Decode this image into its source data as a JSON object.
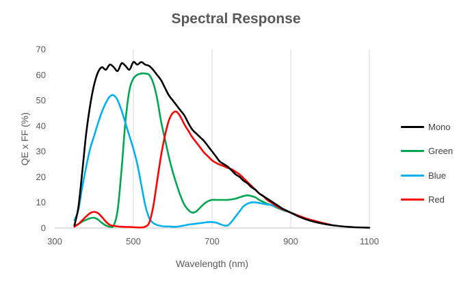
{
  "chart_data": {
    "type": "line",
    "title": "Spectral Response",
    "xlabel": "Wavelength (nm)",
    "ylabel": "QE x FF (%)",
    "xlim": [
      300,
      1100
    ],
    "ylim": [
      0,
      70
    ],
    "xticks": [
      300,
      500,
      700,
      900,
      1100
    ],
    "yticks": [
      0,
      10,
      20,
      30,
      40,
      50,
      60,
      70
    ],
    "grid": "vertical",
    "legend_position": "right",
    "series": [
      {
        "name": "Mono",
        "color": "#000000",
        "points": [
          [
            350,
            1
          ],
          [
            360,
            8
          ],
          [
            370,
            22
          ],
          [
            380,
            37
          ],
          [
            390,
            48
          ],
          [
            400,
            56
          ],
          [
            410,
            61
          ],
          [
            420,
            63
          ],
          [
            430,
            62
          ],
          [
            440,
            64
          ],
          [
            450,
            63
          ],
          [
            460,
            61.5
          ],
          [
            470,
            64.5
          ],
          [
            480,
            63.5
          ],
          [
            490,
            62
          ],
          [
            500,
            65
          ],
          [
            510,
            64
          ],
          [
            520,
            65
          ],
          [
            530,
            64
          ],
          [
            540,
            63.5
          ],
          [
            550,
            62
          ],
          [
            560,
            60
          ],
          [
            570,
            58
          ],
          [
            580,
            55
          ],
          [
            590,
            52
          ],
          [
            600,
            50
          ],
          [
            610,
            48
          ],
          [
            620,
            46
          ],
          [
            630,
            44
          ],
          [
            640,
            41
          ],
          [
            650,
            38.5
          ],
          [
            660,
            37
          ],
          [
            670,
            35.5
          ],
          [
            680,
            34
          ],
          [
            690,
            32
          ],
          [
            700,
            30
          ],
          [
            710,
            28
          ],
          [
            720,
            26
          ],
          [
            730,
            25
          ],
          [
            740,
            24
          ],
          [
            750,
            22.5
          ],
          [
            760,
            21
          ],
          [
            770,
            20
          ],
          [
            780,
            18.5
          ],
          [
            790,
            17.5
          ],
          [
            800,
            16
          ],
          [
            810,
            15
          ],
          [
            820,
            13.5
          ],
          [
            830,
            12.5
          ],
          [
            840,
            11.5
          ],
          [
            850,
            10.5
          ],
          [
            860,
            9.5
          ],
          [
            870,
            8.5
          ],
          [
            880,
            7.5
          ],
          [
            900,
            6
          ],
          [
            920,
            4.5
          ],
          [
            940,
            3.3
          ],
          [
            960,
            2.4
          ],
          [
            980,
            1.7
          ],
          [
            1000,
            1.2
          ],
          [
            1020,
            0.8
          ],
          [
            1040,
            0.5
          ],
          [
            1060,
            0.3
          ],
          [
            1080,
            0.2
          ],
          [
            1100,
            0.1
          ]
        ]
      },
      {
        "name": "Green",
        "color": "#00a650",
        "points": [
          [
            350,
            1
          ],
          [
            360,
            1.5
          ],
          [
            370,
            2.5
          ],
          [
            380,
            3.2
          ],
          [
            390,
            3.8
          ],
          [
            400,
            4
          ],
          [
            410,
            3.3
          ],
          [
            420,
            2
          ],
          [
            430,
            1
          ],
          [
            440,
            0.5
          ],
          [
            450,
            1
          ],
          [
            460,
            7
          ],
          [
            470,
            23
          ],
          [
            480,
            42
          ],
          [
            490,
            54
          ],
          [
            500,
            58.5
          ],
          [
            510,
            60
          ],
          [
            520,
            60.5
          ],
          [
            530,
            60.5
          ],
          [
            540,
            60
          ],
          [
            550,
            57
          ],
          [
            560,
            51
          ],
          [
            570,
            42
          ],
          [
            580,
            35
          ],
          [
            590,
            28
          ],
          [
            600,
            22
          ],
          [
            610,
            17
          ],
          [
            620,
            12.5
          ],
          [
            630,
            9
          ],
          [
            640,
            7
          ],
          [
            650,
            6
          ],
          [
            660,
            6.5
          ],
          [
            670,
            8
          ],
          [
            680,
            9.5
          ],
          [
            690,
            10.5
          ],
          [
            700,
            11
          ],
          [
            710,
            11
          ],
          [
            720,
            11
          ],
          [
            730,
            11
          ],
          [
            740,
            11
          ],
          [
            750,
            11.2
          ],
          [
            760,
            11.5
          ],
          [
            770,
            12
          ],
          [
            780,
            12.5
          ],
          [
            790,
            12.8
          ],
          [
            800,
            12.5
          ],
          [
            810,
            12
          ],
          [
            820,
            11
          ],
          [
            830,
            10.2
          ],
          [
            840,
            9.5
          ],
          [
            850,
            9
          ],
          [
            860,
            8.3
          ],
          [
            880,
            7
          ],
          [
            900,
            6
          ],
          [
            920,
            4.7
          ],
          [
            940,
            3.6
          ],
          [
            960,
            2.8
          ],
          [
            980,
            2
          ],
          [
            1000,
            1.3
          ]
        ]
      },
      {
        "name": "Blue",
        "color": "#00b0f0",
        "points": [
          [
            350,
            3
          ],
          [
            360,
            7
          ],
          [
            370,
            16
          ],
          [
            380,
            24
          ],
          [
            390,
            31
          ],
          [
            400,
            36
          ],
          [
            410,
            41
          ],
          [
            420,
            45.5
          ],
          [
            430,
            49
          ],
          [
            440,
            51.5
          ],
          [
            450,
            52
          ],
          [
            460,
            50
          ],
          [
            470,
            46
          ],
          [
            480,
            41
          ],
          [
            490,
            36
          ],
          [
            500,
            31
          ],
          [
            510,
            25
          ],
          [
            520,
            17
          ],
          [
            530,
            9
          ],
          [
            540,
            4
          ],
          [
            550,
            2
          ],
          [
            560,
            1.2
          ],
          [
            570,
            0.8
          ],
          [
            580,
            0.6
          ],
          [
            590,
            0.6
          ],
          [
            600,
            0.5
          ],
          [
            610,
            0.5
          ],
          [
            620,
            0.7
          ],
          [
            630,
            1
          ],
          [
            640,
            1.3
          ],
          [
            650,
            1.5
          ],
          [
            660,
            1.7
          ],
          [
            670,
            1.9
          ],
          [
            680,
            2.1
          ],
          [
            690,
            2.3
          ],
          [
            700,
            2.3
          ],
          [
            710,
            2.1
          ],
          [
            720,
            1.5
          ],
          [
            730,
            1
          ],
          [
            740,
            1
          ],
          [
            750,
            2.5
          ],
          [
            760,
            4.5
          ],
          [
            770,
            6.5
          ],
          [
            780,
            8.5
          ],
          [
            790,
            9.5
          ],
          [
            800,
            10
          ],
          [
            810,
            10
          ],
          [
            820,
            9.8
          ],
          [
            830,
            9.5
          ],
          [
            840,
            9.2
          ],
          [
            850,
            9
          ],
          [
            860,
            8.5
          ],
          [
            880,
            7.2
          ],
          [
            900,
            6
          ],
          [
            920,
            4.7
          ],
          [
            940,
            3.6
          ],
          [
            960,
            2.7
          ],
          [
            980,
            2
          ],
          [
            1000,
            1.3
          ]
        ]
      },
      {
        "name": "Red",
        "color": "#ff0000",
        "points": [
          [
            350,
            0.5
          ],
          [
            360,
            1.5
          ],
          [
            370,
            3
          ],
          [
            380,
            4.5
          ],
          [
            390,
            5.8
          ],
          [
            400,
            6.3
          ],
          [
            410,
            5.8
          ],
          [
            420,
            4.3
          ],
          [
            430,
            2.5
          ],
          [
            440,
            1.2
          ],
          [
            450,
            0.8
          ],
          [
            460,
            0.6
          ],
          [
            470,
            0.5
          ],
          [
            480,
            0.4
          ],
          [
            490,
            0.4
          ],
          [
            500,
            0.3
          ],
          [
            510,
            0.2
          ],
          [
            520,
            0.2
          ],
          [
            530,
            0.5
          ],
          [
            540,
            2
          ],
          [
            550,
            8
          ],
          [
            560,
            18
          ],
          [
            570,
            28
          ],
          [
            580,
            36
          ],
          [
            590,
            42
          ],
          [
            600,
            45
          ],
          [
            610,
            45.5
          ],
          [
            620,
            43.5
          ],
          [
            630,
            40.5
          ],
          [
            640,
            38
          ],
          [
            650,
            35.5
          ],
          [
            660,
            33.5
          ],
          [
            670,
            31.5
          ],
          [
            680,
            29.5
          ],
          [
            690,
            28
          ],
          [
            700,
            26.5
          ],
          [
            710,
            25.5
          ],
          [
            720,
            24.8
          ],
          [
            730,
            24.2
          ],
          [
            740,
            23.5
          ],
          [
            750,
            23
          ],
          [
            760,
            22
          ],
          [
            770,
            21
          ],
          [
            780,
            19.5
          ],
          [
            790,
            18
          ],
          [
            800,
            16.5
          ],
          [
            810,
            15
          ],
          [
            820,
            13.5
          ],
          [
            830,
            12.5
          ],
          [
            840,
            11
          ],
          [
            850,
            10
          ],
          [
            860,
            9
          ],
          [
            870,
            8
          ],
          [
            880,
            7.3
          ],
          [
            900,
            6
          ],
          [
            920,
            4.8
          ],
          [
            940,
            3.7
          ],
          [
            960,
            2.8
          ],
          [
            980,
            2
          ],
          [
            1000,
            1.3
          ]
        ]
      }
    ]
  }
}
